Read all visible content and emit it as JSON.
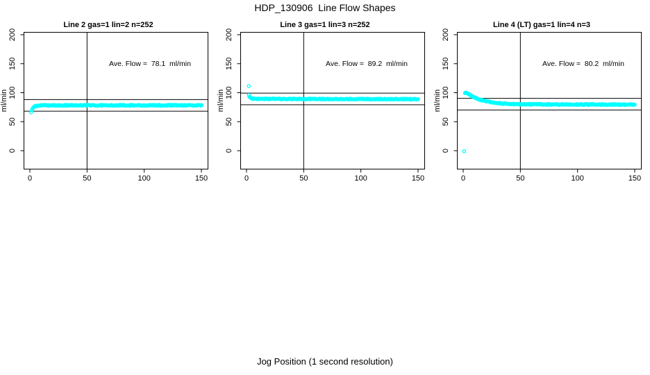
{
  "title": "HDP_130906  Line Flow Shapes",
  "chart_data": {
    "type": "scatter",
    "title": "HDP_130906  Line Flow Shapes",
    "xlabel": "Jog Position (1 second resolution)",
    "ylabel": "ml/min",
    "marker": {
      "shape": "open-circle",
      "color": "#00FFFF"
    },
    "axis_color": "#000000",
    "grid": false,
    "xlim": [
      0,
      150
    ],
    "ylim": [
      -25,
      205
    ],
    "xticks": [
      0,
      50,
      100,
      150
    ],
    "yticks": [
      0,
      50,
      100,
      150,
      200
    ],
    "panels": [
      {
        "title": "Line 2 gas=1 lin=2 n=252",
        "annotation": "Ave. Flow =  78.1  ml/min",
        "ave_flow_ml_min": 78.1,
        "n": 252,
        "vline_x": 50,
        "hlines": [
          88.1,
          68.1
        ],
        "jitter": 0.9,
        "points": [
          [
            1.5,
            69
          ],
          [
            2,
            71.5
          ],
          [
            2.5,
            73
          ],
          [
            3,
            74.5
          ],
          [
            3.5,
            75.5
          ],
          [
            4,
            76.2
          ],
          [
            5,
            77
          ],
          [
            6,
            77.4
          ],
          [
            7,
            77.7
          ],
          [
            8,
            77.9
          ],
          [
            10,
            78.1
          ],
          [
            15,
            78.2
          ],
          [
            25,
            78.2
          ],
          [
            40,
            78.3
          ],
          [
            60,
            78.2
          ],
          [
            80,
            78.3
          ],
          [
            100,
            78.2
          ],
          [
            120,
            78.3
          ],
          [
            150,
            78.2
          ]
        ],
        "outliers": [
          [
            1,
            66
          ]
        ]
      },
      {
        "title": "Line 3 gas=1 lin=3 n=252",
        "annotation": "Ave. Flow =  89.2  ml/min",
        "ave_flow_ml_min": 89.2,
        "n": 252,
        "vline_x": 50,
        "hlines": [
          99.2,
          79.2
        ],
        "jitter": 0.8,
        "points": [
          [
            2,
            96
          ],
          [
            2.5,
            93.5
          ],
          [
            3,
            91.8
          ],
          [
            3.5,
            90.8
          ],
          [
            4,
            90.2
          ],
          [
            5,
            89.8
          ],
          [
            6,
            89.6
          ],
          [
            8,
            89.5
          ],
          [
            12,
            89.4
          ],
          [
            20,
            89.3
          ],
          [
            35,
            89.3
          ],
          [
            60,
            89.2
          ],
          [
            90,
            89.1
          ],
          [
            120,
            89.0
          ],
          [
            150,
            88.9
          ]
        ],
        "outliers": [
          [
            2,
            111.5
          ]
        ]
      },
      {
        "title": "Line 4 (LT) gas=1 lin=4 n=3",
        "annotation": "Ave. Flow =  80.2  ml/min",
        "ave_flow_ml_min": 80.2,
        "n": 3,
        "vline_x": 50,
        "hlines": [
          90.2,
          70.2
        ],
        "jitter": 0.9,
        "points": [
          [
            1.5,
            99
          ],
          [
            2,
            99.5
          ],
          [
            2.5,
            100
          ],
          [
            3,
            99.3
          ],
          [
            4,
            98.3
          ],
          [
            5,
            97.3
          ],
          [
            6,
            96.2
          ],
          [
            7,
            95.1
          ],
          [
            8,
            93.9
          ],
          [
            9,
            93
          ],
          [
            10,
            91.9
          ],
          [
            12,
            90.2
          ],
          [
            14,
            88.7
          ],
          [
            16,
            87.4
          ],
          [
            18,
            86.3
          ],
          [
            20,
            85.4
          ],
          [
            23,
            84.2
          ],
          [
            26,
            83.2
          ],
          [
            30,
            82.2
          ],
          [
            35,
            81.3
          ],
          [
            40,
            80.8
          ],
          [
            45,
            80.4
          ],
          [
            50,
            80.2
          ],
          [
            60,
            80.0
          ],
          [
            75,
            79.8
          ],
          [
            100,
            79.7
          ],
          [
            125,
            79.6
          ],
          [
            150,
            79.5
          ]
        ],
        "outliers": [
          [
            0.8,
            -1
          ]
        ]
      }
    ]
  }
}
